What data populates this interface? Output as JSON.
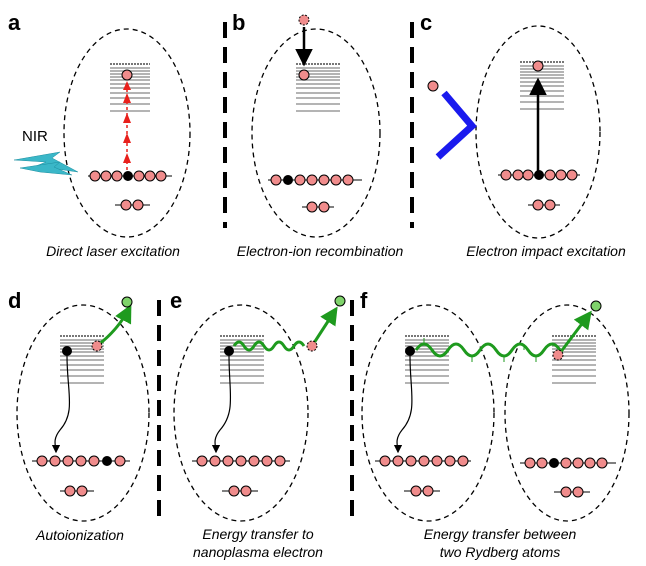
{
  "panels": {
    "a": {
      "label": "a",
      "caption": "Direct laser excitation",
      "laser": "NIR"
    },
    "b": {
      "label": "b",
      "caption": "Electron-ion recombination"
    },
    "c": {
      "label": "c",
      "caption": "Electron impact excitation"
    },
    "d": {
      "label": "d",
      "caption": "Autoionization"
    },
    "e": {
      "label": "e",
      "caption_line1": "Energy transfer to",
      "caption_line2": "nanoplasma electron"
    },
    "f": {
      "label": "f",
      "caption_line1": "Energy transfer between",
      "caption_line2": "two Rydberg atoms"
    }
  },
  "colors": {
    "electron_fill": "#f08c8c",
    "hole_fill": "#000000",
    "free_electron_fill": "#7fd36b",
    "laser_arrow": "#e8201c",
    "energy_transfer": "#1e9a1e",
    "scatter_path": "#1a1aee",
    "nir_beam": "#3ab7c8",
    "level_line": "#888888"
  }
}
